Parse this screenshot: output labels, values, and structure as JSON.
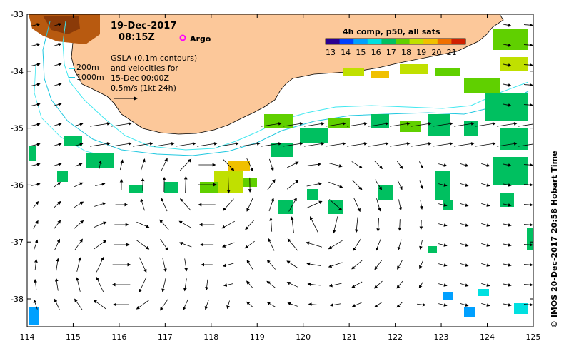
{
  "header": {
    "date": "19-Dec-2017",
    "time": "08:15Z",
    "argo_label": "Argo"
  },
  "legend": {
    "depth_200": "200m",
    "depth_1000": "1000m",
    "gsla_lines": [
      "GSLA (0.1m contours)",
      "and velocities for",
      "15-Dec 00:00Z",
      "0.5m/s (1kt 24h)"
    ]
  },
  "colorbar": {
    "title": "4h comp, p50, all sats",
    "labels": [
      "13",
      "14",
      "15",
      "16",
      "17",
      "18",
      "19",
      "20",
      "21"
    ],
    "colors": [
      "#2a0090",
      "#0040ff",
      "#00a0ff",
      "#00e0e0",
      "#00c060",
      "#60d000",
      "#c0e000",
      "#f0c000",
      "#f07000",
      "#d02000"
    ]
  },
  "axes": {
    "x_ticks": [
      "114",
      "115",
      "116",
      "117",
      "118",
      "119",
      "120",
      "121",
      "122",
      "123",
      "124",
      "125"
    ],
    "y_ticks": [
      "-33",
      "-34",
      "-35",
      "-36",
      "-37",
      "-38"
    ]
  },
  "credit": "© IMOS 20-Dec-2017 20:58 Hobart Time",
  "colors": {
    "land": "#fcc89a",
    "contour_200": "#40e8f0",
    "contour_1000": "#20c8e0",
    "argo": "#ff00ff"
  }
}
